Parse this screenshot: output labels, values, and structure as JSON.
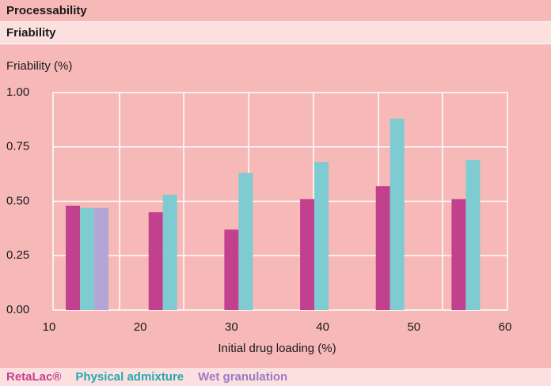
{
  "header": {
    "title": "Processability",
    "subtitle": "Friability"
  },
  "chart_data": {
    "type": "bar",
    "y_label": "Friability (%)",
    "x_label": "Initial drug loading (%)",
    "categories": [
      null,
      null,
      null,
      null,
      null,
      null
    ],
    "series": [
      {
        "name": "RetaLac®",
        "color": "#c2418f",
        "legend_color": "#c2418f",
        "values": [
          0.48,
          0.45,
          0.37,
          0.51,
          0.57,
          0.51
        ]
      },
      {
        "name": "Physical admixture",
        "color": "#7ecbd1",
        "legend_color": "#22a9b1",
        "values": [
          0.47,
          0.53,
          0.63,
          0.68,
          0.88,
          0.69
        ]
      },
      {
        "name": "Wet granulation",
        "color": "#b3a6d6",
        "legend_color": "#9a7bc4",
        "values": [
          0.47,
          null,
          null,
          null,
          null,
          null
        ]
      }
    ],
    "ylim": [
      0,
      1
    ],
    "yticks": [
      {
        "value": 0,
        "label": "0.00"
      },
      {
        "value": 0.25,
        "label": "0.25"
      },
      {
        "value": 0.5,
        "label": "0.50"
      },
      {
        "value": 0.75,
        "label": "0.75"
      },
      {
        "value": 1,
        "label": "1.00"
      }
    ],
    "xlim": [
      10,
      60
    ],
    "xticks": [
      10,
      20,
      30,
      40,
      50,
      60
    ],
    "grid": true
  }
}
